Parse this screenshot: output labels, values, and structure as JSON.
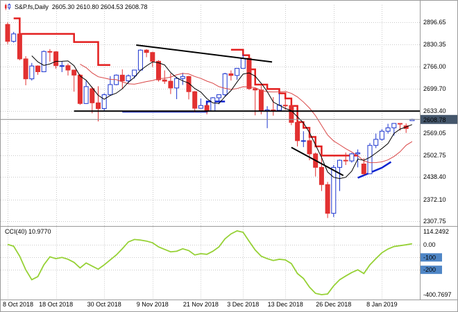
{
  "window": {
    "title_symbol": "S&P.fs,Daily",
    "title_ohlc": "2605.30 2610.80 2604.53 2608.78"
  },
  "indicator_label": "CCI(40) 10.9770",
  "colors": {
    "background": "#ffffff",
    "grid": "#c9c9c9",
    "frame": "#9a9a9a",
    "bull_body": "#ffffff",
    "bull_edge": "#1c35cf",
    "bear": "#e23131",
    "ma_fast": "#000000",
    "ma_slow": "#d94545",
    "stop_up": "#0b23d0",
    "stop_down": "#e31f1f",
    "object": "#000000",
    "cci_line": "#96d135",
    "current_line": "#8a8a8a",
    "current_badge": "#44566b",
    "level_badge": "#4f86c6",
    "axis_text": "#000000",
    "badge_text": "#ffffff"
  },
  "price_axis": {
    "labels": [
      "2896.65",
      "2830.35",
      "2766.00",
      "2699.70",
      "2633.40",
      "2569.05",
      "2502.75",
      "2438.40",
      "2372.10",
      "2307.75"
    ],
    "current_label": "2608.78",
    "current_value": 2608.78
  },
  "cci_axis": {
    "max_label": "114.2492",
    "zero_label": "0.00",
    "min_label": "-400.7697",
    "level_values": [
      0,
      -100,
      -200
    ],
    "badges": [
      {
        "label": "-100",
        "value": -100
      },
      {
        "label": "-200",
        "value": -200
      }
    ]
  },
  "date_axis": {
    "ticks": [
      {
        "label": "8 Oct 2018",
        "i": 0
      },
      {
        "label": "18 Oct 2018",
        "i": 8
      },
      {
        "label": "30 Oct 2018",
        "i": 16
      },
      {
        "label": "9 Nov 2018",
        "i": 24
      },
      {
        "label": "21 Nov 2018",
        "i": 32
      },
      {
        "label": "3 Dec 2018",
        "i": 39
      },
      {
        "label": "13 Dec 2018",
        "i": 46
      },
      {
        "label": "26 Dec 2018",
        "i": 54
      },
      {
        "label": "8 Jan 2019",
        "i": 62
      }
    ]
  },
  "chart_data": {
    "type": "candlestick",
    "title": "S&P.fs,Daily",
    "price_range": {
      "top": 2896.65,
      "bottom": 2307.75
    },
    "cci_range": {
      "top": 114.2492,
      "bottom": -400.7697
    },
    "candles": [
      [
        2890,
        2896,
        2832,
        2840
      ],
      [
        2840,
        2868,
        2836,
        2862
      ],
      [
        2862,
        2866,
        2784,
        2788
      ],
      [
        2788,
        2796,
        2710,
        2729
      ],
      [
        2729,
        2776,
        2724,
        2767
      ],
      [
        2767,
        2769,
        2741,
        2750
      ],
      [
        2750,
        2813,
        2749,
        2810
      ],
      [
        2810,
        2817,
        2780,
        2809
      ],
      [
        2809,
        2811,
        2759,
        2768
      ],
      [
        2768,
        2781,
        2749,
        2768
      ],
      [
        2768,
        2774,
        2739,
        2755
      ],
      [
        2755,
        2756,
        2691,
        2740
      ],
      [
        2740,
        2743,
        2652,
        2656
      ],
      [
        2656,
        2723,
        2655,
        2706
      ],
      [
        2700,
        2706,
        2627,
        2658
      ],
      [
        2658,
        2707,
        2603,
        2641
      ],
      [
        2641,
        2686,
        2634,
        2682
      ],
      [
        2682,
        2737,
        2680,
        2712
      ],
      [
        2712,
        2742,
        2710,
        2740
      ],
      [
        2740,
        2757,
        2699,
        2723
      ],
      [
        2723,
        2742,
        2715,
        2738
      ],
      [
        2738,
        2756,
        2730,
        2755
      ],
      [
        2755,
        2816,
        2754,
        2814
      ],
      [
        2814,
        2817,
        2793,
        2807
      ],
      [
        2807,
        2809,
        2764,
        2781
      ],
      [
        2781,
        2784,
        2721,
        2726
      ],
      [
        2726,
        2754,
        2714,
        2722
      ],
      [
        2722,
        2745,
        2684,
        2702
      ],
      [
        2702,
        2735,
        2669,
        2730
      ],
      [
        2730,
        2747,
        2711,
        2736
      ],
      [
        2736,
        2738,
        2668,
        2691
      ],
      [
        2691,
        2693,
        2630,
        2642
      ],
      [
        2642,
        2671,
        2641,
        2650
      ],
      [
        2650,
        2656,
        2624,
        2633
      ],
      [
        2633,
        2675,
        2632,
        2673
      ],
      [
        2673,
        2683,
        2654,
        2682
      ],
      [
        2682,
        2747,
        2677,
        2744
      ],
      [
        2744,
        2754,
        2724,
        2739
      ],
      [
        2739,
        2761,
        2726,
        2760
      ],
      [
        2760,
        2801,
        2760,
        2790
      ],
      [
        2790,
        2791,
        2696,
        2700
      ],
      [
        2700,
        2701,
        2621,
        2696
      ],
      [
        2696,
        2709,
        2624,
        2633
      ],
      [
        2633,
        2648,
        2583,
        2637
      ],
      [
        2637,
        2675,
        2620,
        2636
      ],
      [
        2636,
        2686,
        2635,
        2651
      ],
      [
        2651,
        2671,
        2637,
        2650
      ],
      [
        2650,
        2651,
        2592,
        2600
      ],
      [
        2600,
        2602,
        2529,
        2546
      ],
      [
        2546,
        2574,
        2527,
        2546
      ],
      [
        2546,
        2586,
        2488,
        2507
      ],
      [
        2507,
        2511,
        2440,
        2467
      ],
      [
        2467,
        2505,
        2397,
        2416
      ],
      [
        2416,
        2424,
        2317,
        2331
      ],
      [
        2331,
        2474,
        2320,
        2467
      ],
      [
        2467,
        2490,
        2397,
        2488
      ],
      [
        2488,
        2511,
        2474,
        2486
      ],
      [
        2486,
        2510,
        2481,
        2507
      ],
      [
        2507,
        2520,
        2467,
        2510
      ],
      [
        2477,
        2494,
        2444,
        2448
      ],
      [
        2448,
        2539,
        2447,
        2532
      ],
      [
        2532,
        2567,
        2524,
        2550
      ],
      [
        2550,
        2580,
        2546,
        2574
      ],
      [
        2574,
        2596,
        2567,
        2584
      ],
      [
        2584,
        2598,
        2561,
        2597
      ],
      [
        2597,
        2598,
        2576,
        2596
      ],
      [
        2590,
        2597,
        2569,
        2582
      ],
      [
        2605.3,
        2610.8,
        2604.53,
        2608.78
      ]
    ],
    "overlays": {
      "ma_fast_period": 5,
      "ma_slow_period": 13,
      "trend_stops": [
        {
          "color_key": "stop_down",
          "points": [
            [
              1,
              2908
            ],
            [
              2,
              2908
            ],
            [
              2,
              2862
            ],
            [
              11,
              2862
            ],
            [
              11,
              2838
            ],
            [
              15,
              2838
            ],
            [
              15,
              2770
            ],
            [
              17,
              2770
            ]
          ]
        },
        {
          "color_key": "stop_up",
          "points": [
            [
              19,
              2632
            ],
            [
              33,
              2632
            ],
            [
              33,
              2662
            ],
            [
              36,
              2662
            ]
          ]
        },
        {
          "color_key": "stop_down",
          "points": [
            [
              37,
              2815
            ],
            [
              39,
              2815
            ],
            [
              39,
              2799
            ],
            [
              40,
              2799
            ],
            [
              40,
              2757
            ],
            [
              41,
              2757
            ],
            [
              41,
              2712
            ],
            [
              43,
              2712
            ],
            [
              43,
              2699
            ],
            [
              45,
              2699
            ],
            [
              45,
              2686
            ],
            [
              46,
              2686
            ],
            [
              46,
              2671
            ],
            [
              47,
              2671
            ],
            [
              47,
              2649
            ],
            [
              48,
              2649
            ],
            [
              48,
              2601
            ],
            [
              49,
              2601
            ],
            [
              49,
              2584
            ],
            [
              50,
              2584
            ],
            [
              50,
              2557
            ],
            [
              51,
              2557
            ],
            [
              51,
              2529
            ],
            [
              52,
              2529
            ],
            [
              52,
              2502
            ],
            [
              58,
              2502
            ]
          ]
        },
        {
          "color_key": "stop_up",
          "points": [
            [
              58,
              2436
            ],
            [
              60,
              2451
            ],
            [
              62,
              2466
            ],
            [
              63.5,
              2483
            ]
          ]
        }
      ],
      "trendlines": [
        {
          "points": [
            [
              11,
              2633.4
            ],
            [
              68.3,
              2633.4
            ]
          ]
        },
        {
          "points": [
            [
              21.3,
              2829
            ],
            [
              43.8,
              2779
            ]
          ]
        },
        {
          "points": [
            [
              47,
              2526
            ],
            [
              55.6,
              2443
            ]
          ]
        }
      ]
    },
    "cci": {
      "period": 40,
      "current": 10.977,
      "values": [
        5,
        -10,
        -90,
        -200,
        -280,
        -255,
        -160,
        -95,
        -110,
        -100,
        -115,
        -140,
        -185,
        -145,
        -170,
        -195,
        -160,
        -120,
        -80,
        -30,
        25,
        45,
        40,
        32,
        18,
        -15,
        -35,
        -55,
        -50,
        -30,
        -45,
        -80,
        -70,
        -75,
        -50,
        -15,
        50,
        90,
        114.2492,
        103,
        30,
        -40,
        -90,
        -110,
        -125,
        -115,
        -120,
        -150,
        -230,
        -270,
        -340,
        -390,
        -400.7697,
        -395,
        -330,
        -280,
        -250,
        -222,
        -200,
        -230,
        -160,
        -110,
        -62,
        -32,
        -12,
        -5,
        2,
        10.977
      ]
    }
  }
}
